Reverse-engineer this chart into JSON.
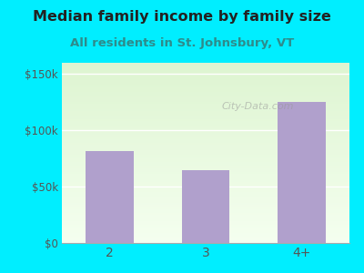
{
  "title": "Median family income by family size",
  "subtitle": "All residents in St. Johnsbury, VT",
  "categories": [
    "2",
    "3",
    "4+"
  ],
  "values": [
    82000,
    65000,
    125000
  ],
  "bar_color": "#b0a0cc",
  "title_color": "#222222",
  "subtitle_color": "#2e8b8b",
  "yticks": [
    0,
    50000,
    100000,
    150000
  ],
  "ytick_labels": [
    "$0",
    "$50k",
    "$100k",
    "$150k"
  ],
  "ylim": [
    0,
    160000
  ],
  "bg_outer": "#00eeff",
  "watermark": "City-Data.com",
  "title_fontsize": 11.5,
  "subtitle_fontsize": 9.5
}
